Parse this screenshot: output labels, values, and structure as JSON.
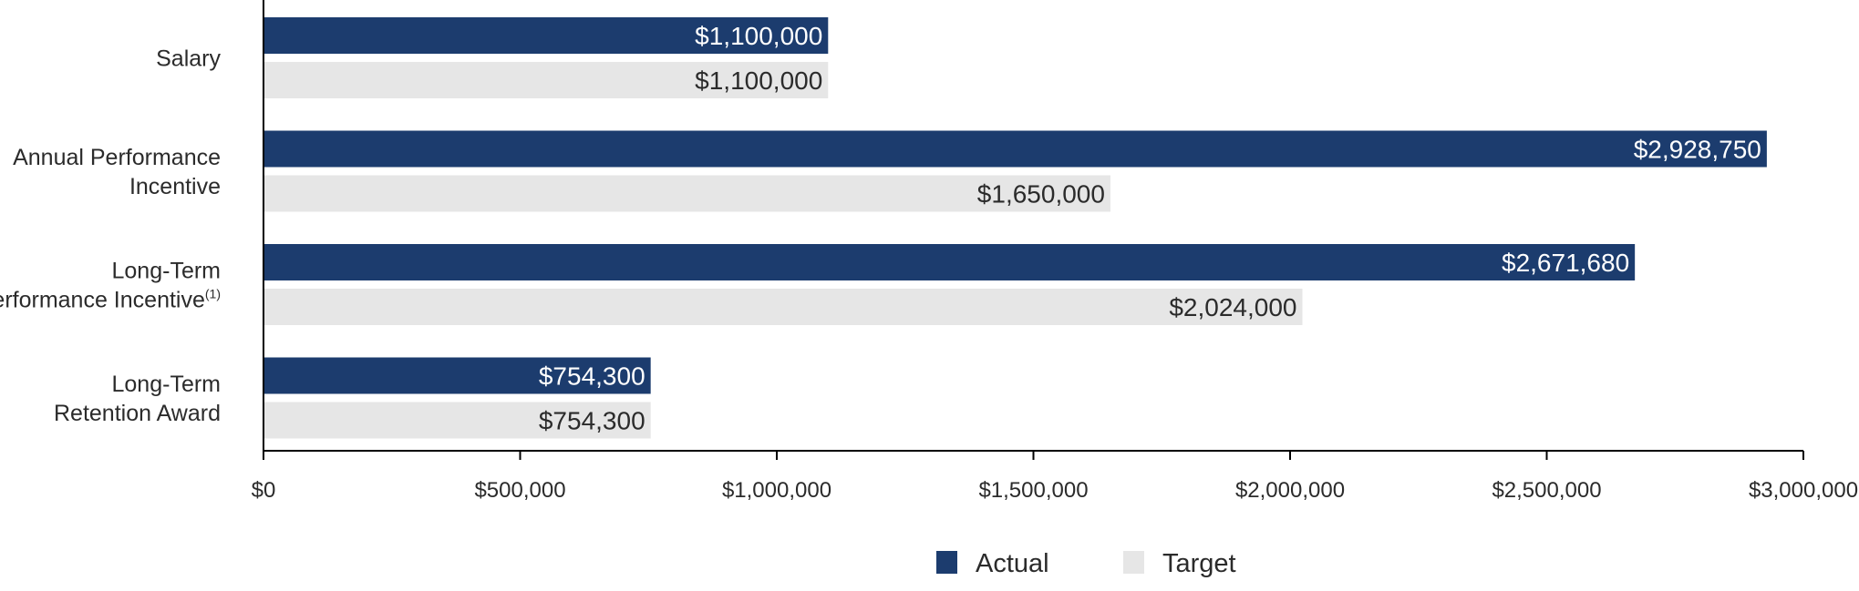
{
  "chart_data": {
    "type": "bar",
    "orientation": "horizontal",
    "categories": [
      [
        "Salary"
      ],
      [
        "Annual Performance",
        "Incentive"
      ],
      [
        "Long-Term",
        "Performance Incentive"
      ],
      [
        "Long-Term",
        "Retention Award"
      ]
    ],
    "category_footnotes": [
      "",
      "",
      "(1)",
      ""
    ],
    "series": [
      {
        "name": "Actual",
        "color": "#1c3c6e",
        "label_color": "#ffffff",
        "values": [
          1100000,
          2928750,
          2671680,
          754300
        ],
        "labels": [
          "$1,100,000",
          "$2,928,750",
          "$2,671,680",
          "$754,300"
        ]
      },
      {
        "name": "Target",
        "color": "#e6e6e6",
        "label_color": "#2b2b2b",
        "values": [
          1100000,
          1650000,
          2024000,
          754300
        ],
        "labels": [
          "$1,100,000",
          "$1,650,000",
          "$2,024,000",
          "$754,300"
        ]
      }
    ],
    "xlim": [
      0,
      3000000
    ],
    "xticks": [
      0,
      500000,
      1000000,
      1500000,
      2000000,
      2500000,
      3000000
    ],
    "xtick_labels": [
      "$0",
      "$500,000",
      "$1,000,000",
      "$1,500,000",
      "$2,000,000",
      "$2,500,000",
      "$3,000,000"
    ],
    "grid": false,
    "legend_position": "bottom-center",
    "xlabel": "",
    "ylabel": "",
    "title": ""
  }
}
